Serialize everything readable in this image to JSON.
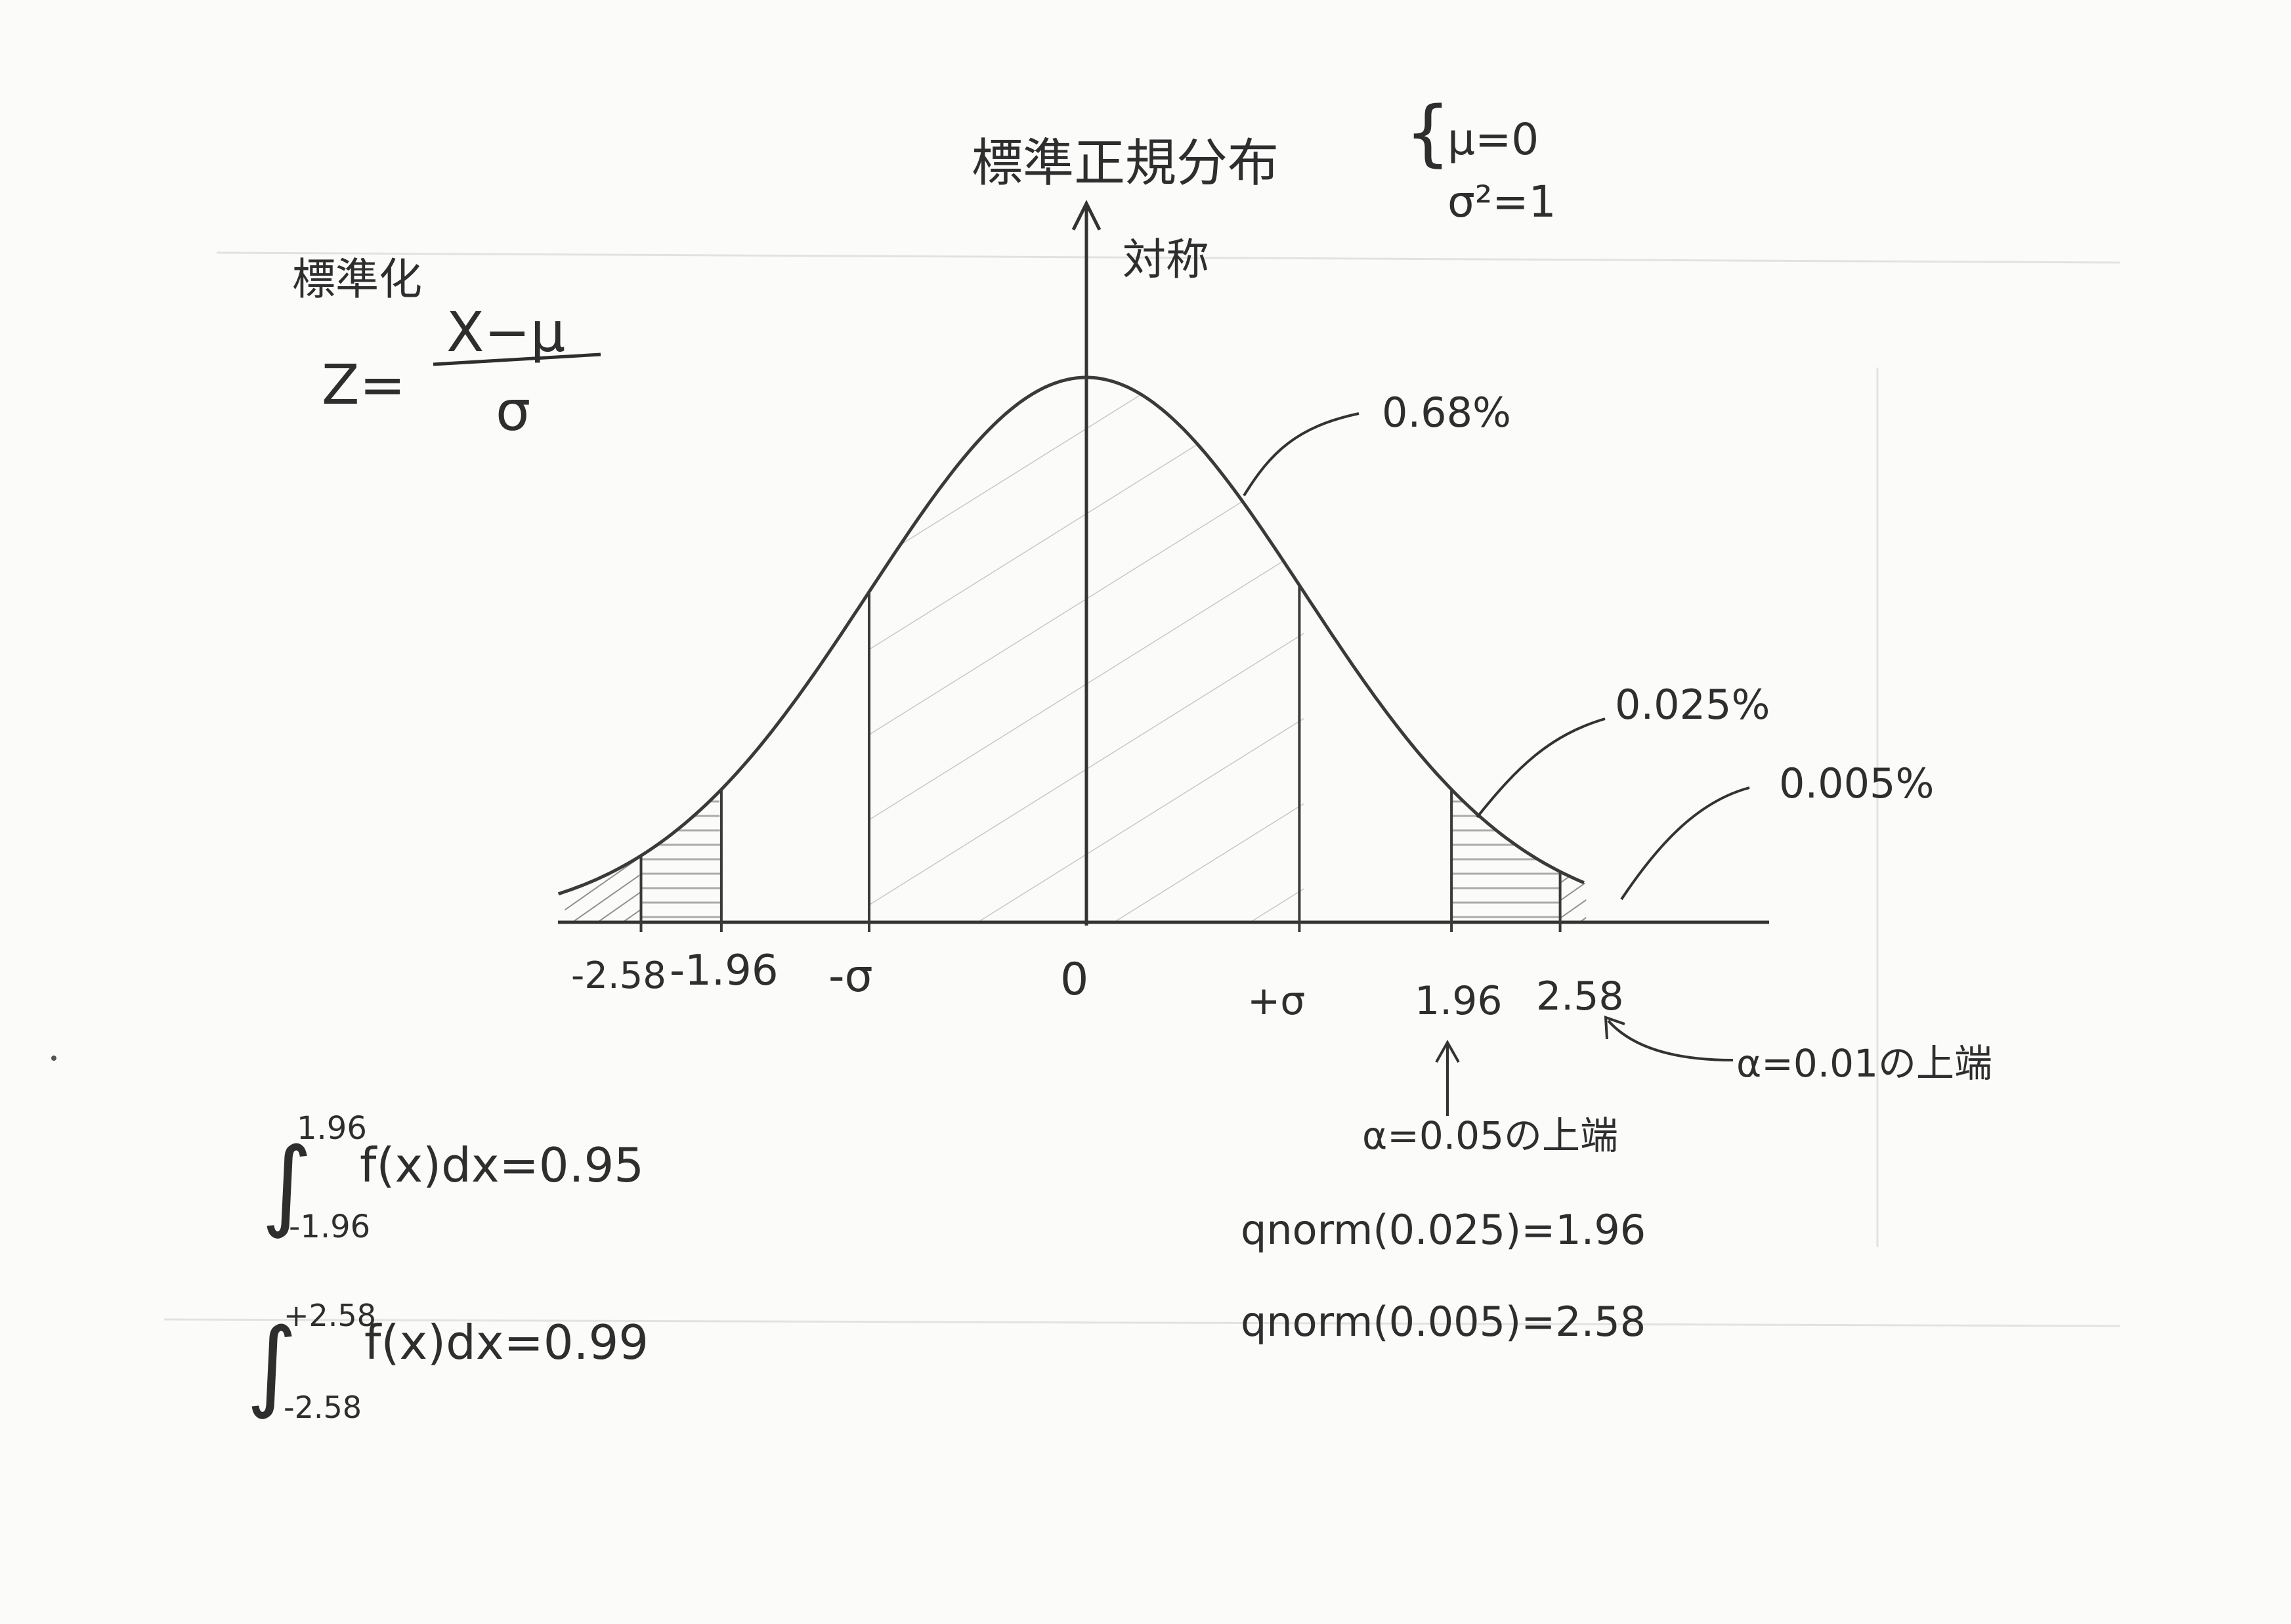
{
  "title": "標準正規分布",
  "params": {
    "mu": "μ=0",
    "sigma2": "σ²=1"
  },
  "symmetry_label": "対称",
  "standardization": {
    "label": "標準化",
    "lhs": "Z=",
    "numerator": "X−μ",
    "denominator": "σ"
  },
  "regions": {
    "center": "0.68%",
    "tail_1": "0.025%",
    "tail_2": "0.005%"
  },
  "axis_labels": [
    "-2.58",
    "-1.96",
    "-σ",
    "0",
    "+σ",
    "1.96",
    "2.58"
  ],
  "notes": {
    "alpha05": "α=0.05の上端",
    "alpha01": "α=0.01の上端"
  },
  "integrals": [
    {
      "upper": "1.96",
      "lower": "-1.96",
      "body": "f(x)dx=0.95"
    },
    {
      "upper": "+2.58",
      "lower": "-2.58",
      "body": "f(x)dx=0.99"
    }
  ],
  "qnorm": [
    "qnorm(0.025)=1.96",
    "qnorm(0.005)=2.58"
  ]
}
